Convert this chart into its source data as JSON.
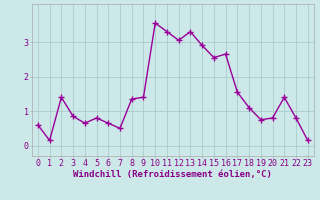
{
  "x": [
    0,
    1,
    2,
    3,
    4,
    5,
    6,
    7,
    8,
    9,
    10,
    11,
    12,
    13,
    14,
    15,
    16,
    17,
    18,
    19,
    20,
    21,
    22,
    23
  ],
  "y": [
    0.6,
    0.15,
    1.4,
    0.85,
    0.65,
    0.8,
    0.65,
    0.5,
    1.35,
    1.4,
    3.55,
    3.3,
    3.05,
    3.3,
    2.9,
    2.55,
    2.65,
    1.55,
    1.1,
    0.75,
    0.8,
    1.4,
    0.8,
    0.15
  ],
  "line_color": "#990099",
  "marker": "+",
  "marker_size": 4,
  "marker_linewidth": 1.0,
  "line_width": 1.0,
  "bg_color": "#cce8e8",
  "grid_color": "#aacccc",
  "xlabel": "Windchill (Refroidissement éolien,°C)",
  "ylim": [
    -0.3,
    4.1
  ],
  "xlim": [
    -0.5,
    23.5
  ],
  "yticks": [
    0,
    1,
    2,
    3
  ],
  "xticks": [
    0,
    1,
    2,
    3,
    4,
    5,
    6,
    7,
    8,
    9,
    10,
    11,
    12,
    13,
    14,
    15,
    16,
    17,
    18,
    19,
    20,
    21,
    22,
    23
  ],
  "xlabel_fontsize": 6.5,
  "tick_fontsize": 6,
  "label_color": "#880088",
  "spine_color": "#aaaaaa"
}
